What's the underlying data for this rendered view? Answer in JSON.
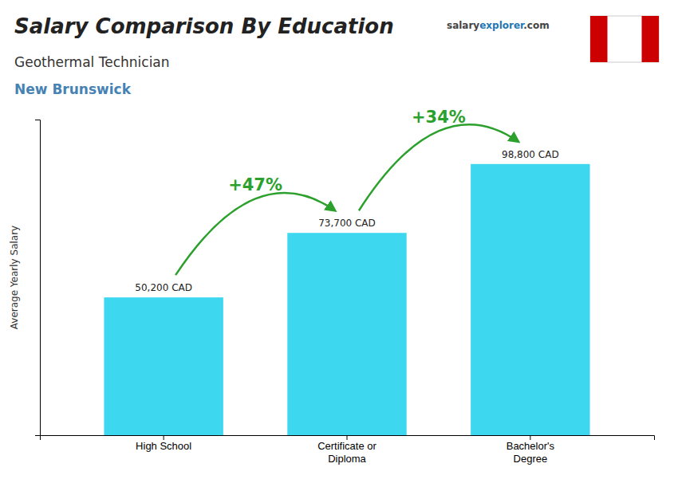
{
  "chart_data": {
    "type": "bar",
    "title": "Salary Comparison By Education",
    "subtitle": "Geothermal Technician",
    "location_label": "New Brunswick",
    "watermark": [
      "salary",
      "explorer",
      ".com"
    ],
    "ylabel": "Average Yearly Salary",
    "categories": [
      "High School",
      "Certificate or\nDiploma",
      "Bachelor's\nDegree"
    ],
    "values": [
      50200,
      73700,
      98800
    ],
    "value_labels": [
      "50,200 CAD",
      "73,700 CAD",
      "98,800 CAD"
    ],
    "data_labels": true,
    "annotations": [
      "+47%",
      "+34%"
    ],
    "color": "#3dd8f0",
    "ylim": [
      0,
      115000
    ],
    "tick_labels": "x",
    "grid": false
  }
}
